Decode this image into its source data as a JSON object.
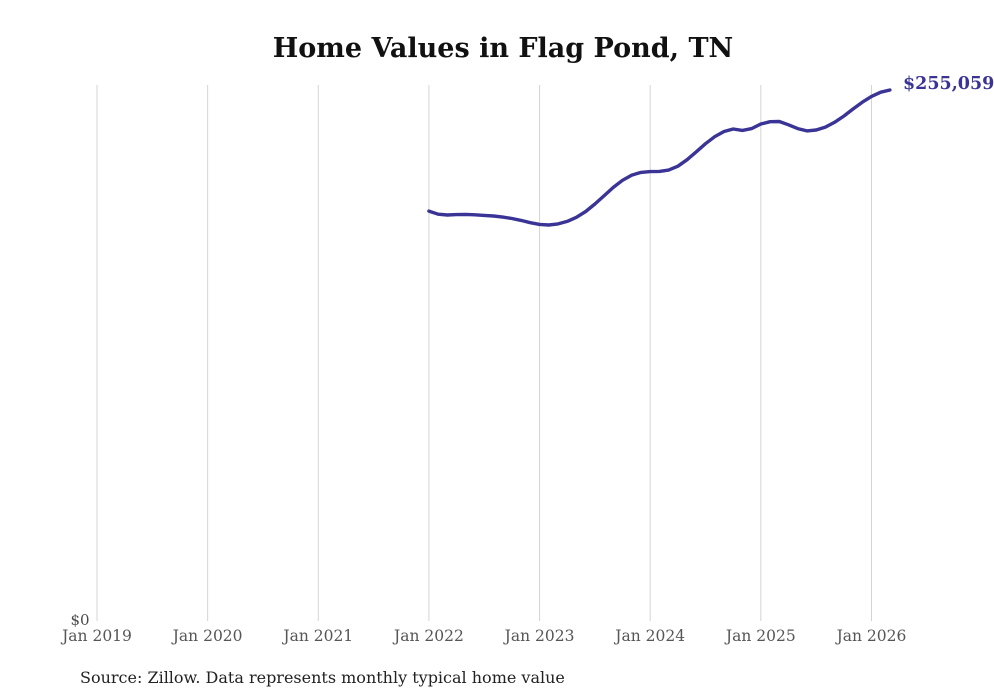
{
  "page": {
    "background": "#ffffff"
  },
  "chart_data": {
    "type": "line",
    "title": "Home Values in Flag Pond, TN",
    "source_note": "Source: Zillow. Data represents monthly typical home value",
    "end_label": "$255,059",
    "line_color": "#3a3496",
    "gridline_color": "#d4d4d4",
    "legend": "none",
    "grid": "vertical-only",
    "x_tick_labels": [
      "Jan 2019",
      "Jan 2020",
      "Jan 2021",
      "Jan 2022",
      "Jan 2023",
      "Jan 2024",
      "Jan 2025",
      "Jan 2026"
    ],
    "y_axis": {
      "zero_label": "$0",
      "ylim": [
        0,
        257500
      ]
    },
    "series": [
      {
        "name": "Monthly typical home value",
        "start_month": "Jan 2022",
        "end_month": "Mar 2026",
        "months": [
          "2022-01",
          "2022-02",
          "2022-03",
          "2022-04",
          "2022-05",
          "2022-06",
          "2022-07",
          "2022-08",
          "2022-09",
          "2022-10",
          "2022-11",
          "2022-12",
          "2023-01",
          "2023-02",
          "2023-03",
          "2023-04",
          "2023-05",
          "2023-06",
          "2023-07",
          "2023-08",
          "2023-09",
          "2023-10",
          "2023-11",
          "2023-12",
          "2024-01",
          "2024-02",
          "2024-03",
          "2024-04",
          "2024-05",
          "2024-06",
          "2024-07",
          "2024-08",
          "2024-09",
          "2024-10",
          "2024-11",
          "2024-12",
          "2025-01",
          "2025-02",
          "2025-03",
          "2025-04",
          "2025-05",
          "2025-06",
          "2025-07",
          "2025-08",
          "2025-09",
          "2025-10",
          "2025-11",
          "2025-12",
          "2026-01",
          "2026-02",
          "2026-03"
        ],
        "values": [
          196800,
          195300,
          194900,
          195100,
          195200,
          195000,
          194700,
          194400,
          193900,
          193200,
          192300,
          191200,
          190400,
          190100,
          190600,
          191800,
          193800,
          196600,
          200200,
          204200,
          208200,
          211600,
          214100,
          215400,
          215800,
          215900,
          216500,
          218400,
          221500,
          225300,
          229200,
          232600,
          235100,
          236300,
          235600,
          236500,
          238700,
          239800,
          239900,
          238300,
          236500,
          235400,
          235800,
          237200,
          239500,
          242500,
          245900,
          249200,
          252000,
          254000,
          255059
        ]
      }
    ]
  }
}
